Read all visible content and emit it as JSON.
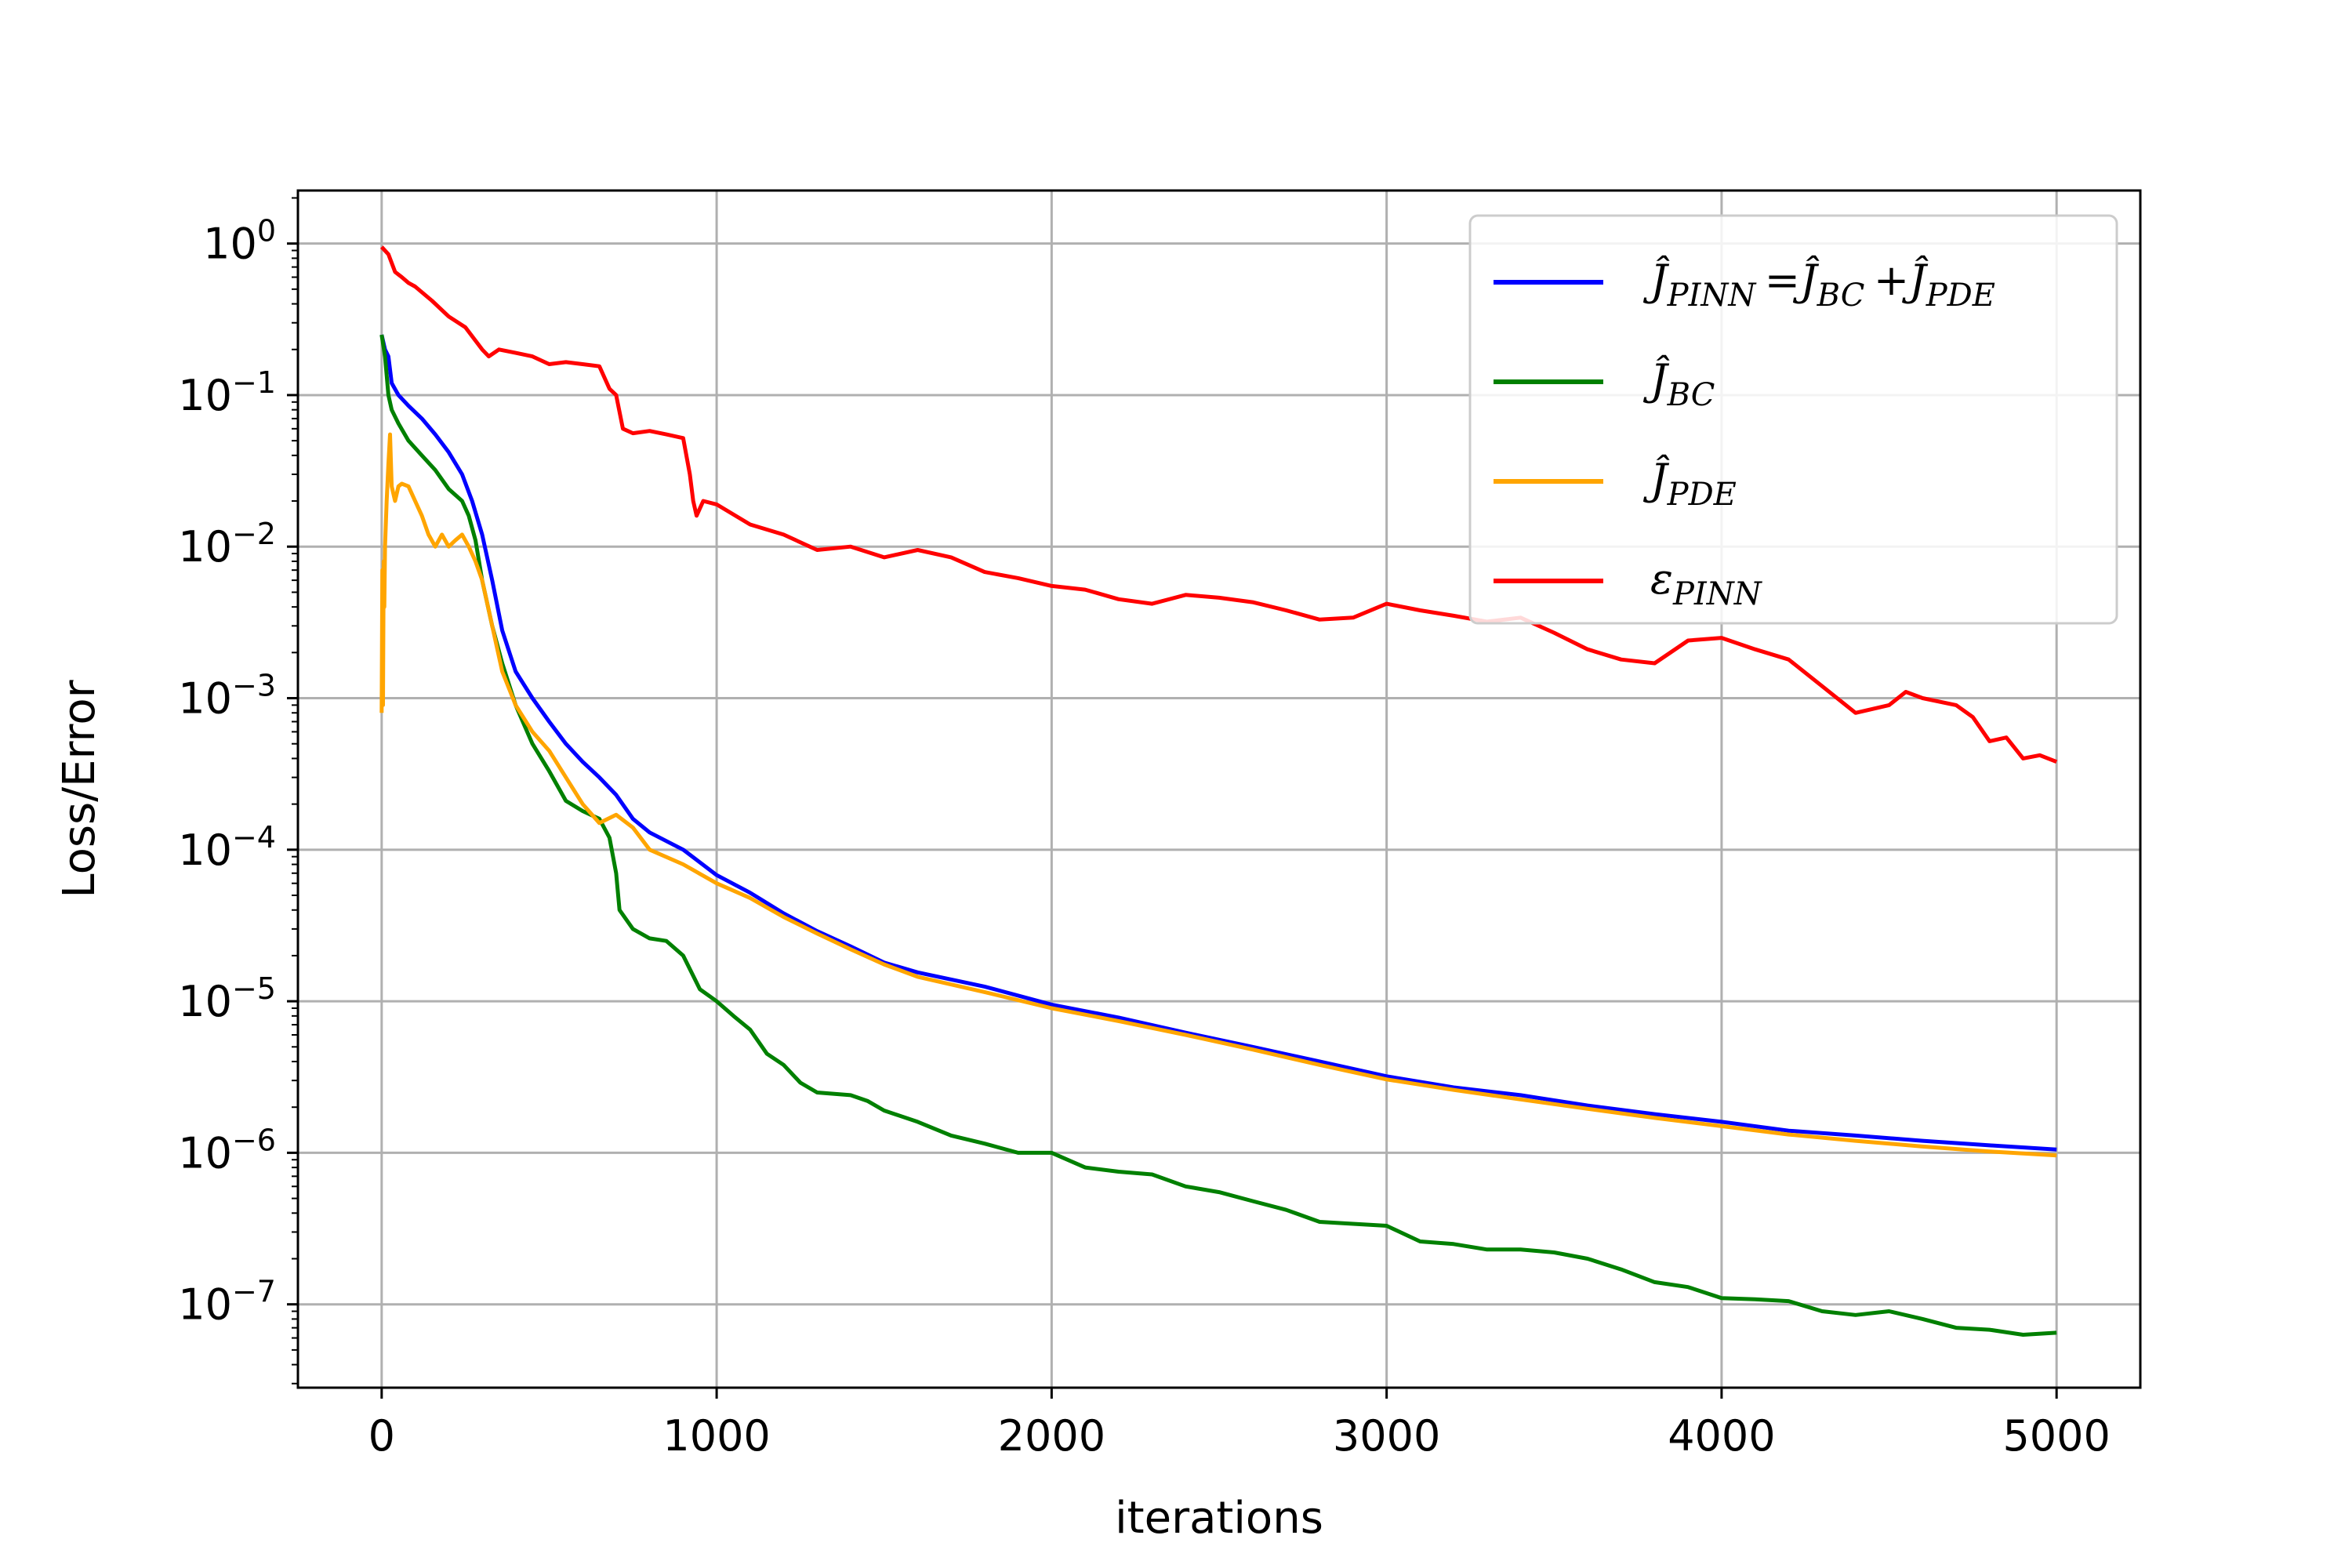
{
  "chart_data": {
    "type": "line",
    "xlabel": "iterations",
    "ylabel": "Loss/Error",
    "xscale": "linear",
    "yscale": "log",
    "xlim": [
      -250,
      5250
    ],
    "ylim_log10": [
      -7.55,
      0.35
    ],
    "grid": true,
    "legend_position": "upper-right",
    "x_ticks": [
      0,
      1000,
      2000,
      3000,
      4000,
      5000
    ],
    "x_tick_labels": [
      "0",
      "1000",
      "2000",
      "3000",
      "4000",
      "5000"
    ],
    "y_ticks_log10": [
      0,
      -1,
      -2,
      -3,
      -4,
      -5,
      -6,
      -7
    ],
    "y_tick_base": "10",
    "y_tick_exponents": [
      "0",
      "−1",
      "−2",
      "−3",
      "−4",
      "−5",
      "−6",
      "−7"
    ],
    "series": [
      {
        "key": "pinn",
        "name": "Ĵ_PINN = Ĵ_BC + Ĵ_PDE",
        "legend_parts": [
          [
            "Ĵ",
            "PINN"
          ],
          [
            "=",
            ""
          ],
          [
            "Ĵ",
            "BC"
          ],
          [
            "+",
            ""
          ],
          [
            "Ĵ",
            "PDE"
          ]
        ],
        "color": "#0000ff",
        "x": [
          0,
          10,
          20,
          30,
          50,
          80,
          120,
          160,
          200,
          240,
          270,
          300,
          330,
          360,
          400,
          450,
          500,
          550,
          600,
          650,
          700,
          750,
          800,
          900,
          1000,
          1100,
          1200,
          1300,
          1400,
          1500,
          1600,
          1800,
          2000,
          2200,
          2400,
          2600,
          2800,
          3000,
          3200,
          3400,
          3600,
          3800,
          4000,
          4200,
          4400,
          4600,
          4800,
          5000
        ],
        "values": [
          0.25,
          0.2,
          0.18,
          0.12,
          0.1,
          0.085,
          0.07,
          0.055,
          0.042,
          0.03,
          0.02,
          0.012,
          0.006,
          0.0028,
          0.0015,
          0.001,
          0.0007,
          0.0005,
          0.00038,
          0.0003,
          0.00023,
          0.00016,
          0.00013,
          0.0001,
          6.8e-05,
          5.2e-05,
          3.8e-05,
          2.9e-05,
          2.3e-05,
          1.8e-05,
          1.55e-05,
          1.25e-05,
          9.5e-06,
          7.8e-06,
          6.2e-06,
          5e-06,
          4e-06,
          3.2e-06,
          2.7e-06,
          2.4e-06,
          2.05e-06,
          1.8e-06,
          1.6e-06,
          1.4e-06,
          1.3e-06,
          1.2e-06,
          1.12e-06,
          1.05e-06
        ]
      },
      {
        "key": "bc",
        "name": "Ĵ_BC",
        "legend_parts": [
          [
            "Ĵ",
            "BC"
          ]
        ],
        "color": "#008000",
        "x": [
          0,
          10,
          20,
          30,
          50,
          80,
          120,
          160,
          200,
          240,
          260,
          280,
          300,
          330,
          360,
          400,
          450,
          500,
          550,
          600,
          650,
          680,
          700,
          710,
          750,
          800,
          850,
          900,
          950,
          1000,
          1050,
          1100,
          1150,
          1200,
          1250,
          1300,
          1400,
          1450,
          1500,
          1600,
          1700,
          1800,
          1900,
          2000,
          2100,
          2200,
          2300,
          2400,
          2500,
          2600,
          2700,
          2800,
          2900,
          3000,
          3100,
          3200,
          3300,
          3400,
          3500,
          3600,
          3700,
          3800,
          3900,
          4000,
          4100,
          4200,
          4300,
          4400,
          4500,
          4600,
          4700,
          4800,
          4900,
          5000
        ],
        "values": [
          0.25,
          0.18,
          0.1,
          0.08,
          0.065,
          0.05,
          0.04,
          0.032,
          0.024,
          0.02,
          0.016,
          0.011,
          0.006,
          0.003,
          0.0017,
          0.0009,
          0.0005,
          0.00033,
          0.00021,
          0.00018,
          0.00016,
          0.00012,
          7e-05,
          4e-05,
          3e-05,
          2.6e-05,
          2.5e-05,
          2e-05,
          1.2e-05,
          1e-05,
          8e-06,
          6.5e-06,
          4.5e-06,
          3.8e-06,
          2.9e-06,
          2.5e-06,
          2.4e-06,
          2.2e-06,
          1.9e-06,
          1.6e-06,
          1.3e-06,
          1.15e-06,
          1e-06,
          1e-06,
          8e-07,
          7.5e-07,
          7.2e-07,
          6e-07,
          5.5e-07,
          4.8e-07,
          4.2e-07,
          3.5e-07,
          3.4e-07,
          3.3e-07,
          2.6e-07,
          2.5e-07,
          2.3e-07,
          2.3e-07,
          2.2e-07,
          2e-07,
          1.7e-07,
          1.4e-07,
          1.3e-07,
          1.1e-07,
          1.08e-07,
          1.05e-07,
          9e-08,
          8.5e-08,
          9e-08,
          8e-08,
          7e-08,
          6.8e-08,
          6.3e-08,
          6.5e-08
        ]
      },
      {
        "key": "pde",
        "name": "Ĵ_PDE",
        "legend_parts": [
          [
            "Ĵ",
            "PDE"
          ]
        ],
        "color": "#ffa500",
        "x": [
          0,
          2,
          4,
          6,
          8,
          10,
          15,
          20,
          25,
          30,
          40,
          50,
          60,
          80,
          100,
          120,
          140,
          160,
          180,
          200,
          220,
          240,
          260,
          280,
          300,
          330,
          360,
          400,
          450,
          500,
          550,
          600,
          650,
          700,
          750,
          800,
          900,
          1000,
          1100,
          1200,
          1300,
          1400,
          1500,
          1600,
          1800,
          2000,
          2200,
          2400,
          2600,
          2800,
          3000,
          3200,
          3400,
          3600,
          3800,
          4000,
          4200,
          4400,
          4600,
          4800,
          5000
        ],
        "values": [
          0.0008,
          0.007,
          0.0009,
          0.008,
          0.004,
          0.01,
          0.02,
          0.035,
          0.055,
          0.025,
          0.02,
          0.025,
          0.026,
          0.025,
          0.02,
          0.016,
          0.012,
          0.01,
          0.012,
          0.01,
          0.011,
          0.012,
          0.01,
          0.008,
          0.006,
          0.003,
          0.0015,
          0.0009,
          0.0006,
          0.00045,
          0.0003,
          0.0002,
          0.00015,
          0.00017,
          0.00014,
          0.0001,
          8e-05,
          6e-05,
          4.8e-05,
          3.6e-05,
          2.8e-05,
          2.2e-05,
          1.75e-05,
          1.45e-05,
          1.15e-05,
          9e-06,
          7.4e-06,
          6e-06,
          4.8e-06,
          3.8e-06,
          3.05e-06,
          2.6e-06,
          2.25e-06,
          1.95e-06,
          1.7e-06,
          1.5e-06,
          1.32e-06,
          1.2e-06,
          1.1e-06,
          1.02e-06,
          9.6e-07
        ]
      },
      {
        "key": "eps",
        "name": "ε_PINN",
        "legend_parts": [
          [
            "ε",
            "PINN"
          ]
        ],
        "color": "#ff0000",
        "x": [
          0,
          20,
          40,
          60,
          80,
          100,
          150,
          200,
          250,
          300,
          320,
          350,
          400,
          450,
          500,
          550,
          600,
          650,
          680,
          700,
          720,
          750,
          800,
          850,
          900,
          920,
          930,
          940,
          960,
          1000,
          1100,
          1200,
          1300,
          1400,
          1500,
          1600,
          1700,
          1800,
          1900,
          2000,
          2100,
          2200,
          2300,
          2400,
          2500,
          2600,
          2700,
          2800,
          2900,
          3000,
          3100,
          3200,
          3300,
          3400,
          3500,
          3600,
          3700,
          3800,
          3900,
          4000,
          4100,
          4200,
          4300,
          4400,
          4500,
          4550,
          4600,
          4700,
          4750,
          4800,
          4850,
          4900,
          4950,
          5000
        ],
        "values": [
          0.95,
          0.85,
          0.65,
          0.6,
          0.55,
          0.52,
          0.42,
          0.33,
          0.28,
          0.2,
          0.18,
          0.2,
          0.19,
          0.18,
          0.16,
          0.165,
          0.16,
          0.155,
          0.11,
          0.1,
          0.06,
          0.056,
          0.058,
          0.055,
          0.052,
          0.03,
          0.02,
          0.016,
          0.02,
          0.019,
          0.014,
          0.012,
          0.0095,
          0.01,
          0.0085,
          0.0095,
          0.0085,
          0.0068,
          0.0062,
          0.0055,
          0.0052,
          0.0045,
          0.0042,
          0.0048,
          0.0046,
          0.0043,
          0.0038,
          0.0033,
          0.0034,
          0.0042,
          0.0038,
          0.0035,
          0.0032,
          0.0034,
          0.0027,
          0.0021,
          0.0018,
          0.0017,
          0.0024,
          0.0025,
          0.0021,
          0.0018,
          0.0012,
          0.0008,
          0.0009,
          0.0011,
          0.001,
          0.0009,
          0.00075,
          0.00052,
          0.00055,
          0.0004,
          0.00042,
          0.00038
        ]
      }
    ]
  }
}
